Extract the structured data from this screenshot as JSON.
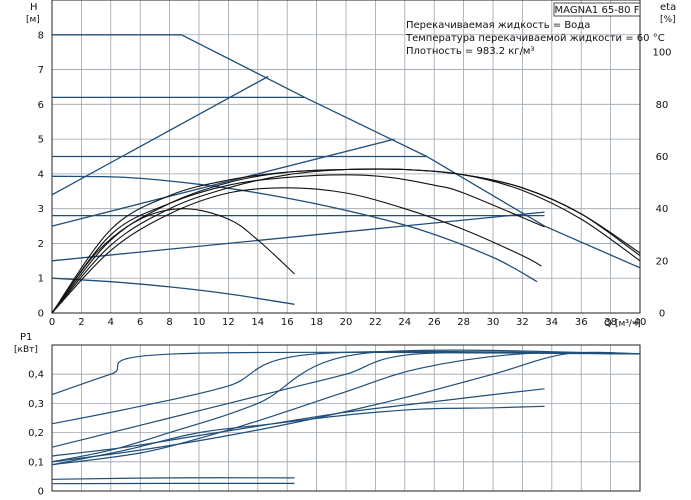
{
  "colors": {
    "curve": "#1f4e79",
    "efficiency": "#111111",
    "grid": "#9aa3ad"
  },
  "chart_data": [
    {
      "type": "line",
      "panel": "head",
      "title": "MAGNA1 65-80 F",
      "annotations": [
        "Перекачиваемая жидкость = Вода",
        "Температура перекачиваемой жидкости = 60 °C",
        "Плотность = 983.2 кг/м³"
      ],
      "ylabel": "H",
      "yunit": "[м]",
      "y2label": "eta",
      "y2unit": "[%]",
      "xlabel": "Q",
      "xunit": "[м³/ч]",
      "xlim": [
        0,
        40
      ],
      "ylim": [
        0,
        9
      ],
      "y2lim": [
        0,
        120
      ],
      "xticks": [
        0,
        2,
        4,
        6,
        8,
        10,
        12,
        14,
        16,
        18,
        20,
        22,
        24,
        26,
        28,
        30,
        32,
        34,
        36,
        38,
        40
      ],
      "yticks": [
        0,
        1,
        2,
        3,
        4,
        5,
        6,
        7,
        8
      ],
      "y2ticks": [
        0,
        20,
        40,
        60,
        80,
        100
      ],
      "grid": true,
      "series": [
        {
          "role": "max-curve",
          "x": [
            0,
            8.8,
            17.2,
            25.5,
            33.5,
            40
          ],
          "y": [
            8.0,
            8.0,
            6.2,
            4.5,
            2.5,
            1.3
          ]
        },
        {
          "role": "const-pressure",
          "x": [
            0,
            17.2
          ],
          "y": [
            6.2,
            6.2
          ]
        },
        {
          "role": "const-pressure",
          "x": [
            0,
            25.5
          ],
          "y": [
            4.5,
            4.5
          ]
        },
        {
          "role": "const-pressure",
          "x": [
            0,
            33.5
          ],
          "y": [
            2.8,
            2.8
          ]
        },
        {
          "role": "prop-pressure",
          "x": [
            0,
            14.7
          ],
          "y": [
            3.4,
            6.8
          ]
        },
        {
          "role": "prop-pressure",
          "x": [
            0,
            23.3
          ],
          "y": [
            2.5,
            5.0
          ]
        },
        {
          "role": "prop-pressure",
          "x": [
            0,
            33.5
          ],
          "y": [
            1.5,
            2.9
          ]
        },
        {
          "role": "speed-curve",
          "x": [
            0,
            5,
            10,
            15,
            20,
            25,
            30,
            33
          ],
          "y": [
            3.93,
            3.9,
            3.7,
            3.38,
            2.95,
            2.4,
            1.6,
            0.9
          ]
        },
        {
          "role": "speed-curve",
          "x": [
            0,
            4,
            8,
            12,
            16.5
          ],
          "y": [
            1.0,
            0.9,
            0.75,
            0.55,
            0.25
          ]
        },
        {
          "role": "efficiency",
          "x": [
            0,
            3,
            6,
            9,
            12,
            14,
            16.5
          ],
          "y": [
            0,
            23,
            36,
            40,
            36,
            28,
            15
          ]
        },
        {
          "role": "efficiency",
          "x": [
            0,
            4,
            8,
            12,
            16,
            20,
            24,
            28,
            32,
            33.3
          ],
          "y": [
            0,
            24,
            38,
            46,
            48,
            46,
            40,
            32,
            22,
            18
          ]
        },
        {
          "role": "efficiency",
          "x": [
            0,
            4,
            8,
            12,
            16,
            20,
            23,
            26,
            28,
            33.5
          ],
          "y": [
            0,
            30,
            42,
            49,
            52,
            53,
            52,
            49,
            46,
            33
          ]
        },
        {
          "role": "efficiency",
          "x": [
            0,
            4,
            8,
            12,
            16,
            20,
            24,
            28,
            32,
            36,
            40
          ],
          "y": [
            0,
            26,
            40,
            48,
            53,
            55,
            55,
            53,
            48,
            38,
            23
          ]
        },
        {
          "role": "efficiency",
          "x": [
            0,
            4,
            8,
            12,
            16,
            20,
            24,
            28,
            32,
            36,
            40
          ],
          "y": [
            0,
            28,
            42,
            50,
            54,
            55,
            55,
            53,
            48,
            38,
            22
          ]
        },
        {
          "role": "efficiency",
          "x": [
            0,
            4,
            8,
            12,
            16,
            20,
            24,
            28,
            32,
            36,
            40
          ],
          "y": [
            0,
            32,
            45,
            51,
            54,
            55,
            55,
            53,
            47,
            36,
            20
          ]
        }
      ]
    },
    {
      "type": "line",
      "panel": "power",
      "ylabel": "P1",
      "yunit": "[кВт]",
      "xlim": [
        0,
        40
      ],
      "ylim": [
        0,
        0.5
      ],
      "yticks": [
        0,
        0.1,
        0.2,
        0.3,
        0.4
      ],
      "ytick_labels": [
        "0",
        "0,1",
        "0,2",
        "0,3",
        "0,4"
      ],
      "grid": true,
      "series": [
        {
          "x": [
            0,
            4,
            8.5,
            40
          ],
          "y": [
            0.33,
            0.4,
            0.47,
            0.47
          ]
        },
        {
          "x": [
            0,
            6,
            12,
            18,
            40
          ],
          "y": [
            0.23,
            0.29,
            0.36,
            0.47,
            0.47
          ]
        },
        {
          "x": [
            0,
            4,
            8,
            12,
            16,
            20,
            25,
            40
          ],
          "y": [
            0.15,
            0.2,
            0.25,
            0.3,
            0.35,
            0.4,
            0.47,
            0.47
          ]
        },
        {
          "x": [
            0,
            6,
            12,
            18,
            24,
            30,
            35,
            40
          ],
          "y": [
            0.1,
            0.14,
            0.19,
            0.25,
            0.32,
            0.4,
            0.47,
            0.47
          ]
        },
        {
          "x": [
            0,
            5,
            10,
            15,
            20,
            25,
            30,
            33.5
          ],
          "y": [
            0.12,
            0.15,
            0.19,
            0.23,
            0.27,
            0.3,
            0.33,
            0.35
          ]
        },
        {
          "x": [
            0,
            5,
            10,
            15,
            20,
            25,
            30,
            33.5
          ],
          "y": [
            0.09,
            0.14,
            0.2,
            0.23,
            0.26,
            0.28,
            0.285,
            0.29
          ]
        },
        {
          "x": [
            0,
            6,
            10,
            14,
            20,
            25,
            32,
            40
          ],
          "y": [
            0.09,
            0.13,
            0.18,
            0.24,
            0.34,
            0.42,
            0.47,
            0.47
          ]
        },
        {
          "x": [
            0,
            4,
            8,
            14,
            21,
            40
          ],
          "y": [
            0.1,
            0.14,
            0.2,
            0.3,
            0.47,
            0.47
          ]
        },
        {
          "x": [
            0,
            8,
            16.5
          ],
          "y": [
            0.04,
            0.045,
            0.045
          ]
        },
        {
          "x": [
            0,
            8,
            16.5
          ],
          "y": [
            0.025,
            0.026,
            0.026
          ]
        }
      ]
    }
  ]
}
